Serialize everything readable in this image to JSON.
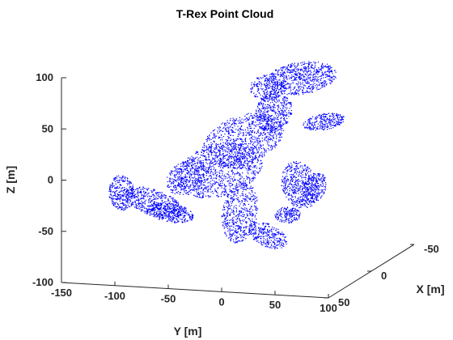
{
  "chart_data": {
    "type": "scatter",
    "title": "T-Rex Point Cloud",
    "xlabel": "X [m]",
    "ylabel": "Y [m]",
    "zlabel": "Z [m]",
    "point_color": "#0000ff",
    "axis_color": "#262626",
    "xlim": [
      -50,
      50
    ],
    "ylim": [
      -150,
      100
    ],
    "zlim": [
      -100,
      100
    ],
    "x_ticks": [
      "-50",
      "0",
      "50"
    ],
    "y_ticks": [
      "-150",
      "-100",
      "-50",
      "0",
      "50",
      "100"
    ],
    "z_ticks": [
      "-100",
      "-50",
      "0",
      "50",
      "100"
    ],
    "grid": false,
    "view": "3d",
    "series": [
      {
        "points": "dense point cloud (~several thousand points) forming a T-Rex silhouette; body and head in upper-right region, tail extending toward negative Y, legs reaching down to about Z = -70"
      }
    ]
  }
}
